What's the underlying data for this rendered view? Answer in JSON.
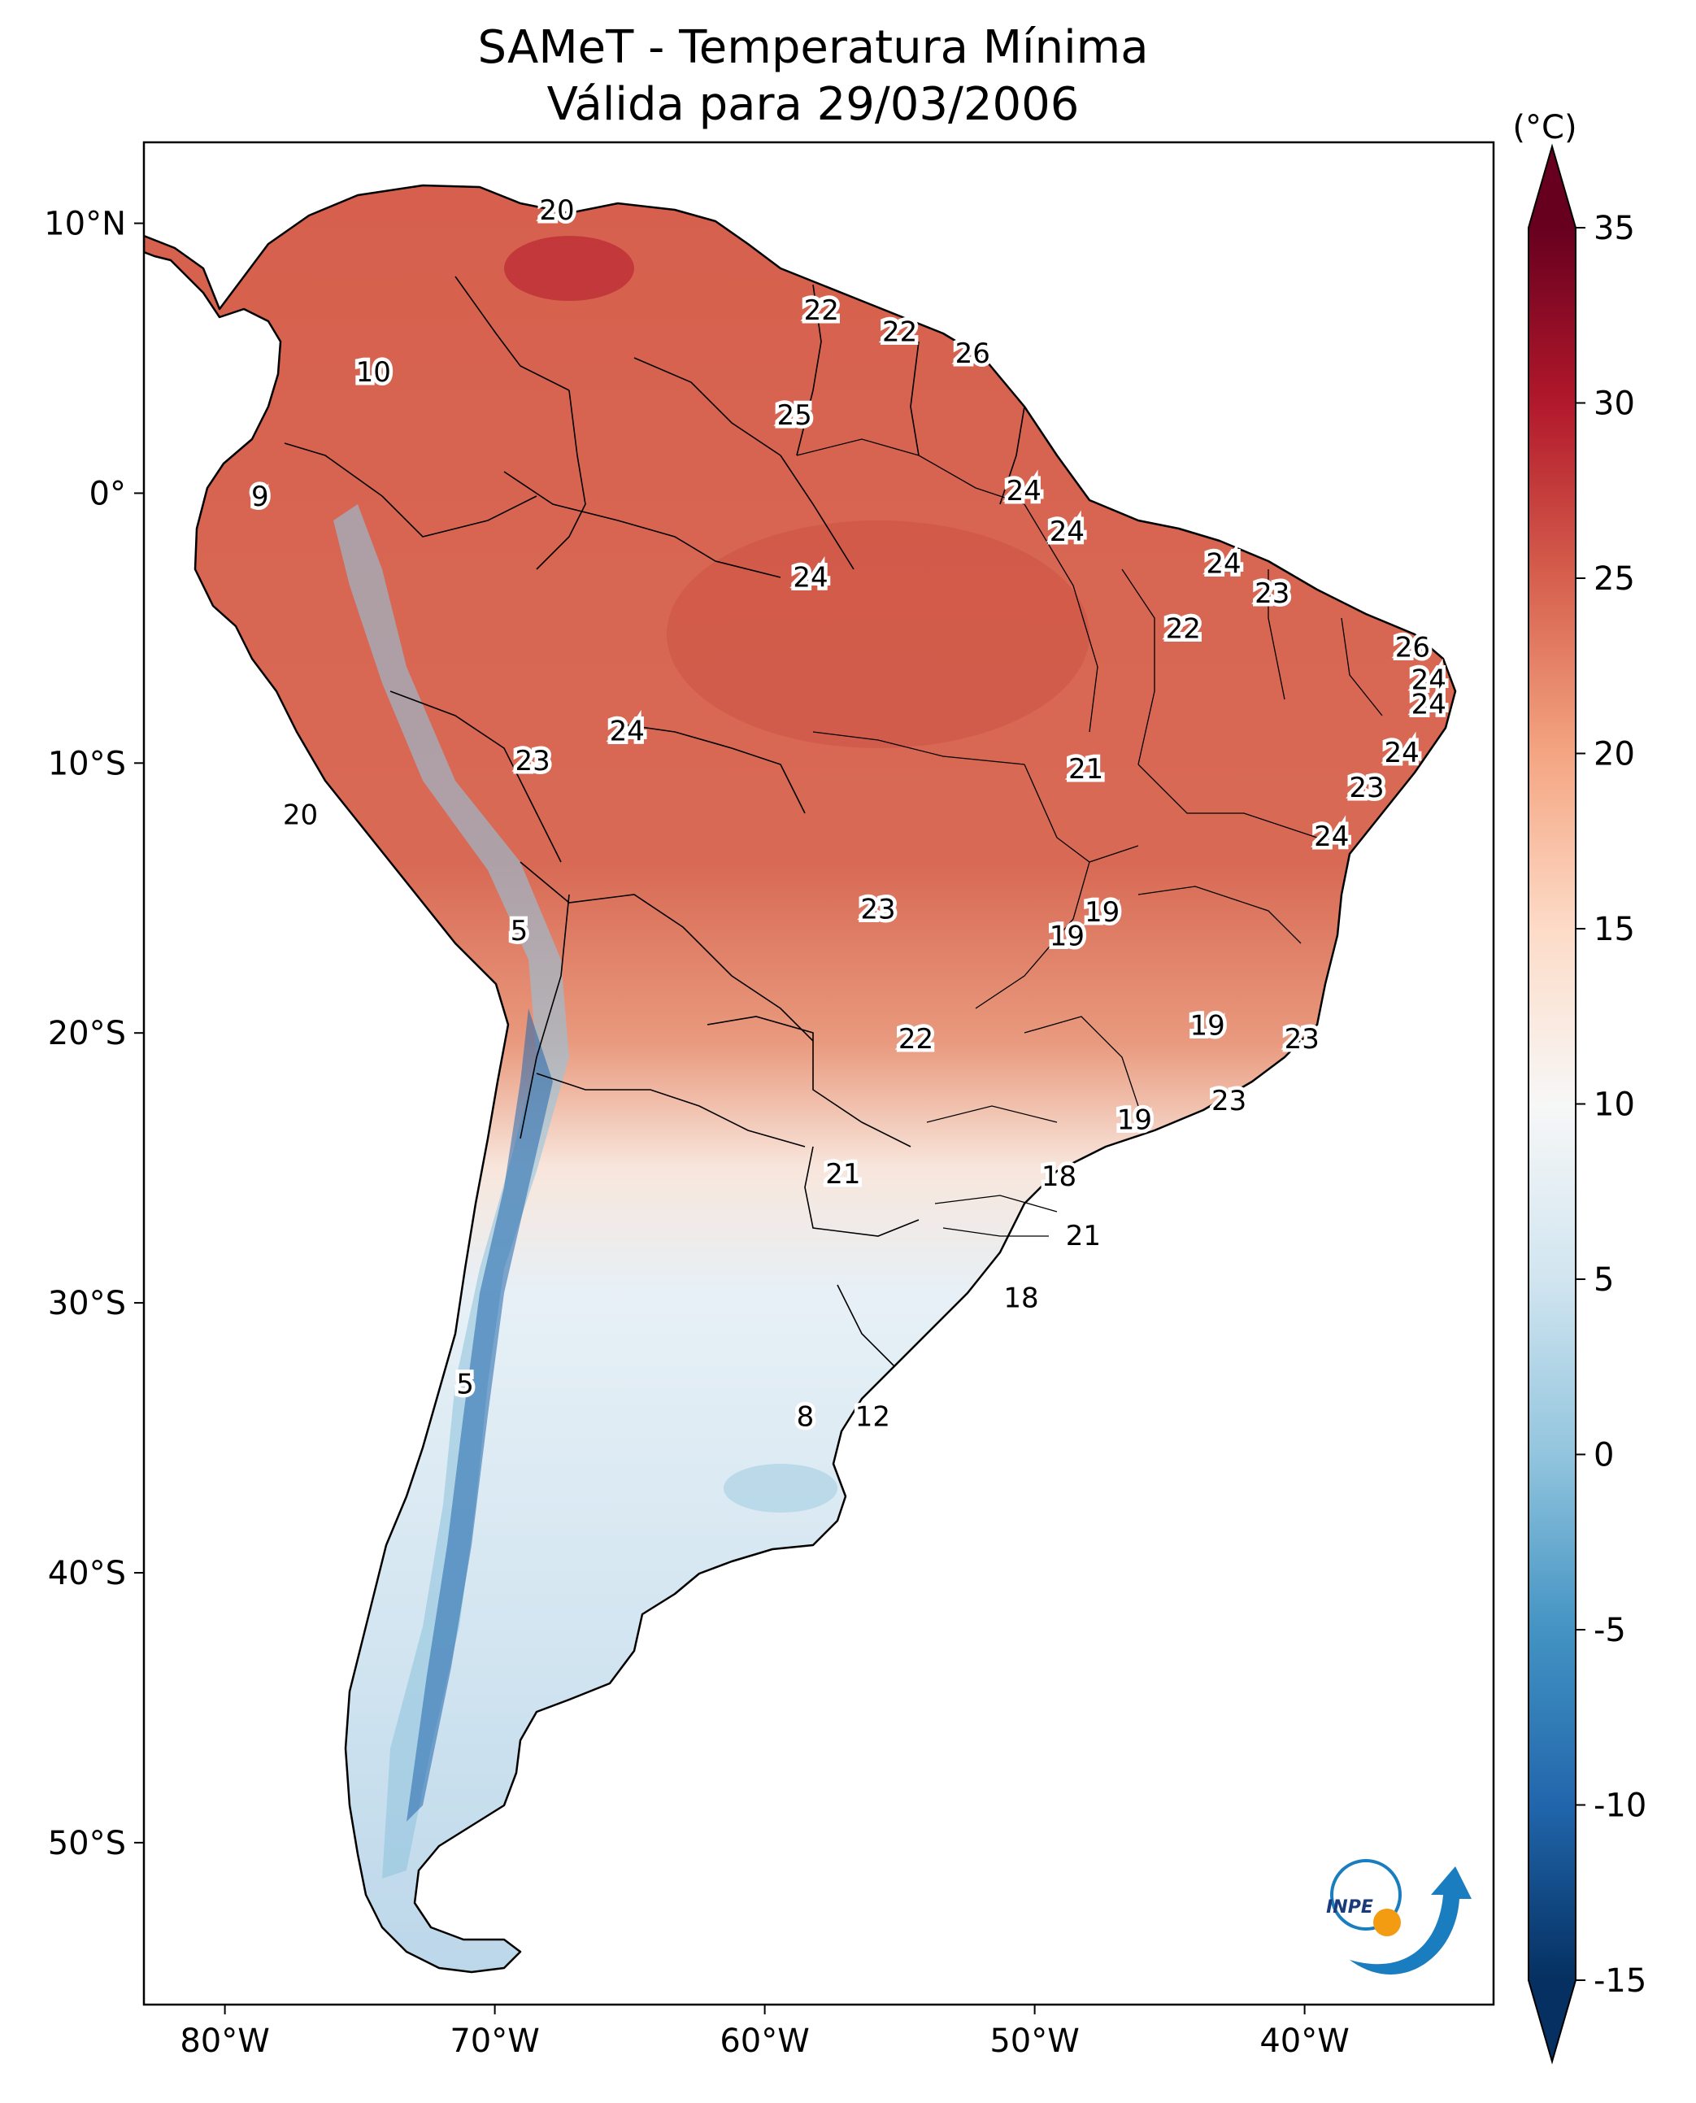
{
  "title": {
    "line1": "SAMeT - Temperatura Mínima",
    "line2": "Válida para 29/03/2006"
  },
  "map": {
    "lon_range": [
      -83,
      -33
    ],
    "lat_range": [
      -56,
      13
    ],
    "lon_ticks": [
      "80°W",
      "70°W",
      "60°W",
      "50°W",
      "40°W"
    ],
    "lon_tick_values": [
      -80,
      -70,
      -60,
      -50,
      -40
    ],
    "lat_ticks": [
      "10°N",
      "0°",
      "10°S",
      "20°S",
      "30°S",
      "40°S",
      "50°S"
    ],
    "lat_tick_values": [
      10,
      0,
      -10,
      -20,
      -30,
      -40,
      -50
    ],
    "labels": [
      {
        "lon": -67.7,
        "lat": 10.5,
        "value": "20"
      },
      {
        "lon": -57.9,
        "lat": 6.8,
        "value": "22"
      },
      {
        "lon": -55.0,
        "lat": 6.0,
        "value": "22"
      },
      {
        "lon": -52.3,
        "lat": 5.2,
        "value": "26"
      },
      {
        "lon": -74.5,
        "lat": 4.5,
        "value": "10"
      },
      {
        "lon": -58.9,
        "lat": 2.9,
        "value": "25"
      },
      {
        "lon": -78.7,
        "lat": -0.1,
        "value": "9"
      },
      {
        "lon": -50.4,
        "lat": 0.1,
        "value": "24"
      },
      {
        "lon": -48.8,
        "lat": -1.4,
        "value": "24"
      },
      {
        "lon": -43.0,
        "lat": -2.6,
        "value": "24"
      },
      {
        "lon": -58.3,
        "lat": -3.1,
        "value": "24"
      },
      {
        "lon": -41.2,
        "lat": -3.7,
        "value": "23"
      },
      {
        "lon": -44.5,
        "lat": -5.0,
        "value": "22"
      },
      {
        "lon": -36.0,
        "lat": -5.7,
        "value": "26"
      },
      {
        "lon": -35.4,
        "lat": -6.9,
        "value": "24"
      },
      {
        "lon": -35.4,
        "lat": -7.8,
        "value": "24"
      },
      {
        "lon": -65.1,
        "lat": -8.8,
        "value": "24"
      },
      {
        "lon": -36.4,
        "lat": -9.6,
        "value": "24"
      },
      {
        "lon": -68.6,
        "lat": -9.9,
        "value": "23"
      },
      {
        "lon": -48.1,
        "lat": -10.2,
        "value": "21"
      },
      {
        "lon": -37.7,
        "lat": -10.9,
        "value": "23"
      },
      {
        "lon": -77.2,
        "lat": -11.9,
        "value": "20"
      },
      {
        "lon": -39.0,
        "lat": -12.7,
        "value": "24"
      },
      {
        "lon": -55.8,
        "lat": -15.4,
        "value": "23"
      },
      {
        "lon": -47.5,
        "lat": -15.5,
        "value": "19"
      },
      {
        "lon": -69.1,
        "lat": -16.2,
        "value": "5"
      },
      {
        "lon": -48.8,
        "lat": -16.4,
        "value": "19"
      },
      {
        "lon": -43.6,
        "lat": -19.7,
        "value": "19"
      },
      {
        "lon": -54.4,
        "lat": -20.2,
        "value": "22"
      },
      {
        "lon": -40.1,
        "lat": -20.2,
        "value": "23"
      },
      {
        "lon": -42.8,
        "lat": -22.5,
        "value": "23"
      },
      {
        "lon": -46.3,
        "lat": -23.2,
        "value": "19"
      },
      {
        "lon": -57.1,
        "lat": -25.2,
        "value": "21"
      },
      {
        "lon": -49.1,
        "lat": -25.3,
        "value": "18"
      },
      {
        "lon": -48.2,
        "lat": -27.5,
        "value": "21"
      },
      {
        "lon": -50.5,
        "lat": -29.8,
        "value": "18"
      },
      {
        "lon": -71.1,
        "lat": -33.0,
        "value": "5"
      },
      {
        "lon": -58.5,
        "lat": -34.2,
        "value": "8"
      },
      {
        "lon": -56.0,
        "lat": -34.2,
        "value": "12"
      }
    ]
  },
  "colorbar": {
    "unit": "(°C)",
    "min": -15,
    "max": 35,
    "tick_values": [
      35,
      30,
      25,
      20,
      15,
      10,
      5,
      0,
      -5,
      -10,
      -15
    ],
    "ticks": [
      "35",
      "30",
      "25",
      "20",
      "15",
      "10",
      "5",
      "0",
      "-5",
      "-10",
      "-15"
    ],
    "colormap": "RdBu_r",
    "colors": [
      "#053061",
      "#2166ac",
      "#4393c3",
      "#92c5de",
      "#d1e5f0",
      "#f7f7f7",
      "#fddbc7",
      "#f4a582",
      "#d6604d",
      "#b2182b",
      "#67001f"
    ]
  },
  "logo": {
    "text": "INPE",
    "ring_color": "#1a7dc0",
    "dot_color": "#f39c12"
  }
}
